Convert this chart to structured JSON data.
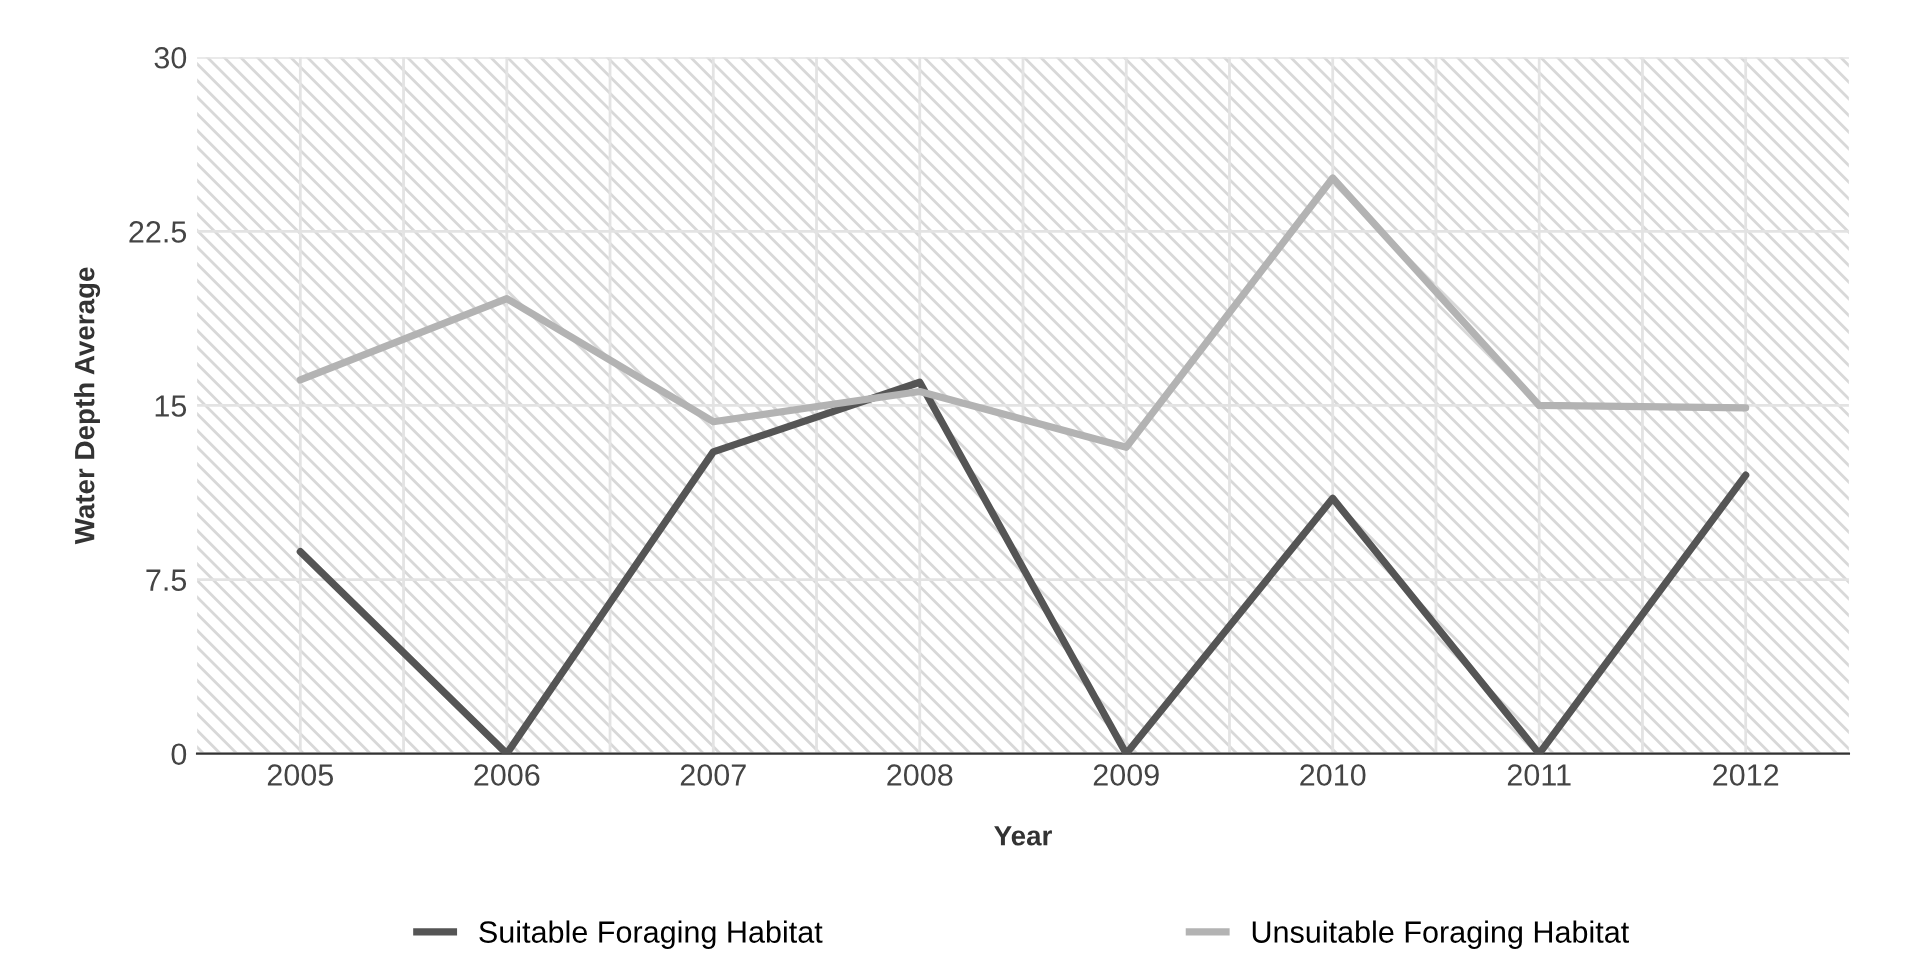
{
  "chart_data": {
    "type": "line",
    "xlabel": "Year",
    "ylabel": "Water Depth Average",
    "categories": [
      "2005",
      "2006",
      "2007",
      "2008",
      "2009",
      "2010",
      "2011",
      "2012"
    ],
    "series": [
      {
        "name": "Suitable Foraging Habitat",
        "color": "#555555",
        "values": [
          8.7,
          0,
          13.0,
          16.0,
          0,
          11.0,
          0,
          12.0
        ]
      },
      {
        "name": "Unsuitable Foraging Habitat",
        "color": "#b3b3b3",
        "values": [
          16.1,
          19.6,
          14.3,
          15.6,
          13.2,
          24.8,
          15.0,
          14.9
        ]
      }
    ],
    "ylim": [
      0,
      30
    ],
    "yticks": [
      0,
      7.5,
      15,
      22.5,
      30
    ],
    "grid": true,
    "legend": "bottom",
    "marker": "none",
    "line_style": "solid"
  }
}
